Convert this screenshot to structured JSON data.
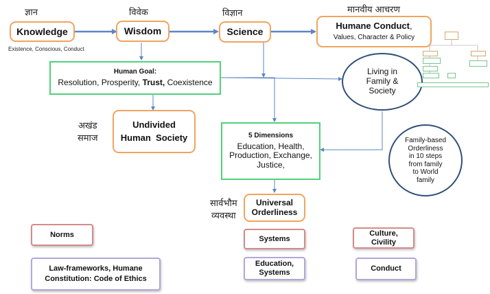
{
  "hindi": {
    "gyan": "ज्ञान",
    "vivek": "विवेक",
    "vigyan": "विज्ञान",
    "manaviya_acharan": "मानवीय आचरण",
    "akhand_line1": "अखंड",
    "akhand_line2": "समाज",
    "sarvabhaum_line1": "सार्वभौम",
    "sarvabhaum_line2": "व्यवस्था"
  },
  "flow": {
    "knowledge": "Knowledge",
    "knowledge_sub": "Existence, Conscious, Conduct",
    "wisdom": "Wisdom",
    "science": "Science",
    "humane_conduct_title": "Humane Conduct",
    "humane_conduct_comma": ",",
    "humane_conduct_sub": "Values, Character & Policy"
  },
  "goal": {
    "title": "Human Goal:",
    "line_a": "Resolution, Prosperity, ",
    "line_b": "Trust,",
    "line_c": " Coexistence"
  },
  "living": {
    "line1": "Living in",
    "line2": "Family &",
    "line3": "Society"
  },
  "undivided": {
    "line1": "Undivided",
    "line2": "Human  Society"
  },
  "dimensions": {
    "title": "5 Dimensions",
    "line1": "Education, Health,",
    "line2": "Production, Exchange,",
    "line3": "Justice,"
  },
  "family_orderliness": {
    "line1": "Family-based",
    "line2": "Orderliness",
    "line3": "in 10 steps",
    "line4": "from family",
    "line5": "to World",
    "line6": "family"
  },
  "universal": {
    "line1": "Universal",
    "line2": "Orderliness"
  },
  "bottom": {
    "norms": "Norms",
    "systems": "Systems",
    "culture_line1": "Culture,",
    "culture_line2": "Civility",
    "law_line1": "Law-frameworks, Humane",
    "law_line2": "Constitution: Code of Ethics",
    "education_line1": "Education,",
    "education_line2": "Systems",
    "conduct": "Conduct"
  },
  "colors": {
    "orange_border": "#f0a35e",
    "green_border": "#4fd17a",
    "rose_border": "#d48a8a",
    "lavender_border": "#b4a6d8",
    "circle_border": "#2f4f78",
    "arrow": "#5b86c2"
  }
}
